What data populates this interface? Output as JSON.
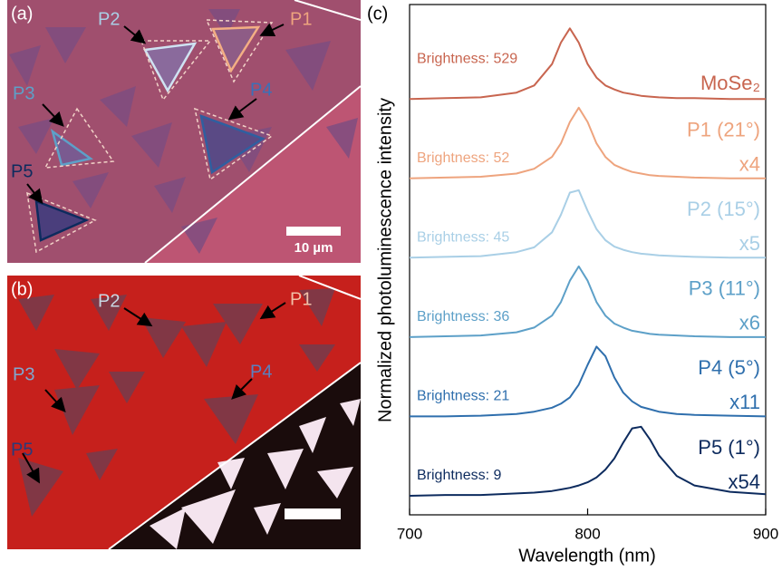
{
  "panels": {
    "a": {
      "label": "(a)",
      "markers": [
        "P1",
        "P2",
        "P3",
        "P4",
        "P5"
      ],
      "scale_bar": "10 µm"
    },
    "b": {
      "label": "(b)",
      "markers": [
        "P1",
        "P2",
        "P3",
        "P4",
        "P5"
      ]
    }
  },
  "chart_data": {
    "type": "line",
    "panel_label": "(c)",
    "xlabel": "Wavelength (nm)",
    "ylabel": "Normalized photoluminescence intensity",
    "xlim": [
      700,
      900
    ],
    "xticks": [
      700,
      800,
      900
    ],
    "ylim": [
      0,
      6.43
    ],
    "x": [
      700,
      720,
      740,
      760,
      770,
      780,
      785,
      790,
      795,
      800,
      805,
      810,
      815,
      820,
      825,
      830,
      835,
      840,
      850,
      860,
      880,
      900
    ],
    "series": [
      {
        "name": "MoSe₂",
        "brightness": "Brightness: 529",
        "color": "#c8654f",
        "values": [
          5.24,
          5.25,
          5.26,
          5.32,
          5.41,
          5.68,
          5.95,
          6.13,
          5.95,
          5.68,
          5.51,
          5.41,
          5.36,
          5.32,
          5.3,
          5.28,
          5.27,
          5.26,
          5.25,
          5.25,
          5.24,
          5.24
        ]
      },
      {
        "name": "P1 (21°)",
        "scale": "x4",
        "brightness": "Brightness: 52",
        "color": "#eea47e",
        "values": [
          4.24,
          4.25,
          4.26,
          4.3,
          4.36,
          4.51,
          4.68,
          4.95,
          5.13,
          4.95,
          4.68,
          4.51,
          4.41,
          4.36,
          4.32,
          4.3,
          4.28,
          4.27,
          4.26,
          4.25,
          4.24,
          4.24
        ]
      },
      {
        "name": "P2 (15°)",
        "scale": "x5",
        "brightness": "Brightness: 45",
        "color": "#a9cfe6",
        "values": [
          3.24,
          3.25,
          3.26,
          3.31,
          3.37,
          3.56,
          3.78,
          4.06,
          4.09,
          3.83,
          3.6,
          3.46,
          3.38,
          3.34,
          3.31,
          3.29,
          3.28,
          3.27,
          3.26,
          3.25,
          3.24,
          3.24
        ]
      },
      {
        "name": "P3 (11°)",
        "scale": "x6",
        "brightness": "Brightness: 36",
        "color": "#5da0c8",
        "values": [
          2.24,
          2.25,
          2.26,
          2.3,
          2.36,
          2.51,
          2.68,
          2.95,
          3.13,
          2.95,
          2.68,
          2.51,
          2.41,
          2.36,
          2.32,
          2.3,
          2.28,
          2.27,
          2.26,
          2.25,
          2.24,
          2.24
        ]
      },
      {
        "name": "P4 (5°)",
        "scale": "x11",
        "brightness": "Brightness: 21",
        "color": "#2f6fad",
        "values": [
          1.24,
          1.24,
          1.25,
          1.27,
          1.3,
          1.35,
          1.4,
          1.48,
          1.64,
          1.89,
          2.12,
          2.0,
          1.73,
          1.54,
          1.43,
          1.36,
          1.33,
          1.3,
          1.27,
          1.26,
          1.25,
          1.24
        ]
      },
      {
        "name": "P5 (1°)",
        "scale": "x54",
        "brightness": "Brightness: 9",
        "color": "#0d2b5e",
        "values": [
          0.24,
          0.25,
          0.25,
          0.27,
          0.28,
          0.3,
          0.32,
          0.34,
          0.37,
          0.41,
          0.47,
          0.57,
          0.71,
          0.91,
          1.09,
          1.11,
          0.95,
          0.75,
          0.49,
          0.37,
          0.29,
          0.26
        ]
      }
    ]
  }
}
